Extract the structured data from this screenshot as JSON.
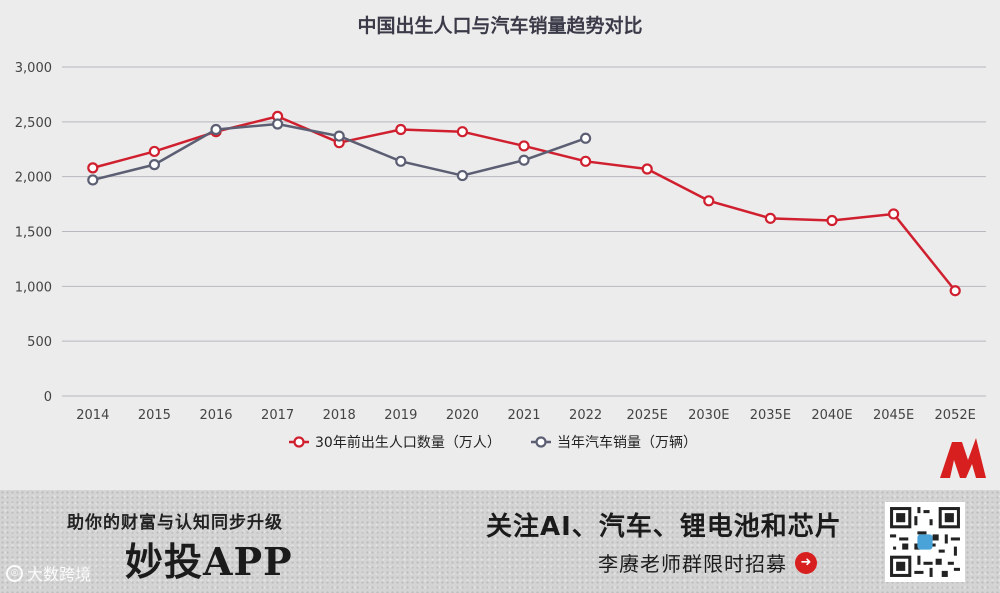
{
  "chart_data": {
    "type": "line",
    "title": "中国出生人口与汽车销量趋势对比",
    "categories": [
      "2014",
      "2015",
      "2016",
      "2017",
      "2018",
      "2019",
      "2020",
      "2021",
      "2022",
      "2025E",
      "2030E",
      "2035E",
      "2040E",
      "2045E",
      "2052E"
    ],
    "ylim": [
      0,
      3000
    ],
    "yticks": [
      0,
      500,
      1000,
      1500,
      2000,
      2500,
      3000
    ],
    "ytick_labels": [
      "0",
      "500",
      "1,000",
      "1,500",
      "2,000",
      "2,500",
      "3,000"
    ],
    "xlabel": "",
    "ylabel": "",
    "grid": true,
    "legend_position": "bottom",
    "series": [
      {
        "name": "30年前出生人口数量（万人）",
        "color": "#d0202f",
        "values": [
          2080,
          2230,
          2410,
          2550,
          2310,
          2430,
          2410,
          2280,
          2140,
          2070,
          1780,
          1620,
          1600,
          1660,
          960
        ]
      },
      {
        "name": "当年汽车销量（万辆）",
        "color": "#5c5f73",
        "values": [
          1970,
          2110,
          2430,
          2480,
          2370,
          2140,
          2010,
          2150,
          2350,
          null,
          null,
          null,
          null,
          null,
          null
        ]
      }
    ]
  },
  "banner": {
    "slogan": "助你的财富与认知同步升级",
    "app_name": "妙投APP",
    "topics": "关注AI、汽车、锂电池和芯片",
    "recruit": "李赓老师群限时招募",
    "watermark": "大数跨境"
  },
  "colors": {
    "accent": "#d71f1f",
    "background": "#ececec"
  }
}
